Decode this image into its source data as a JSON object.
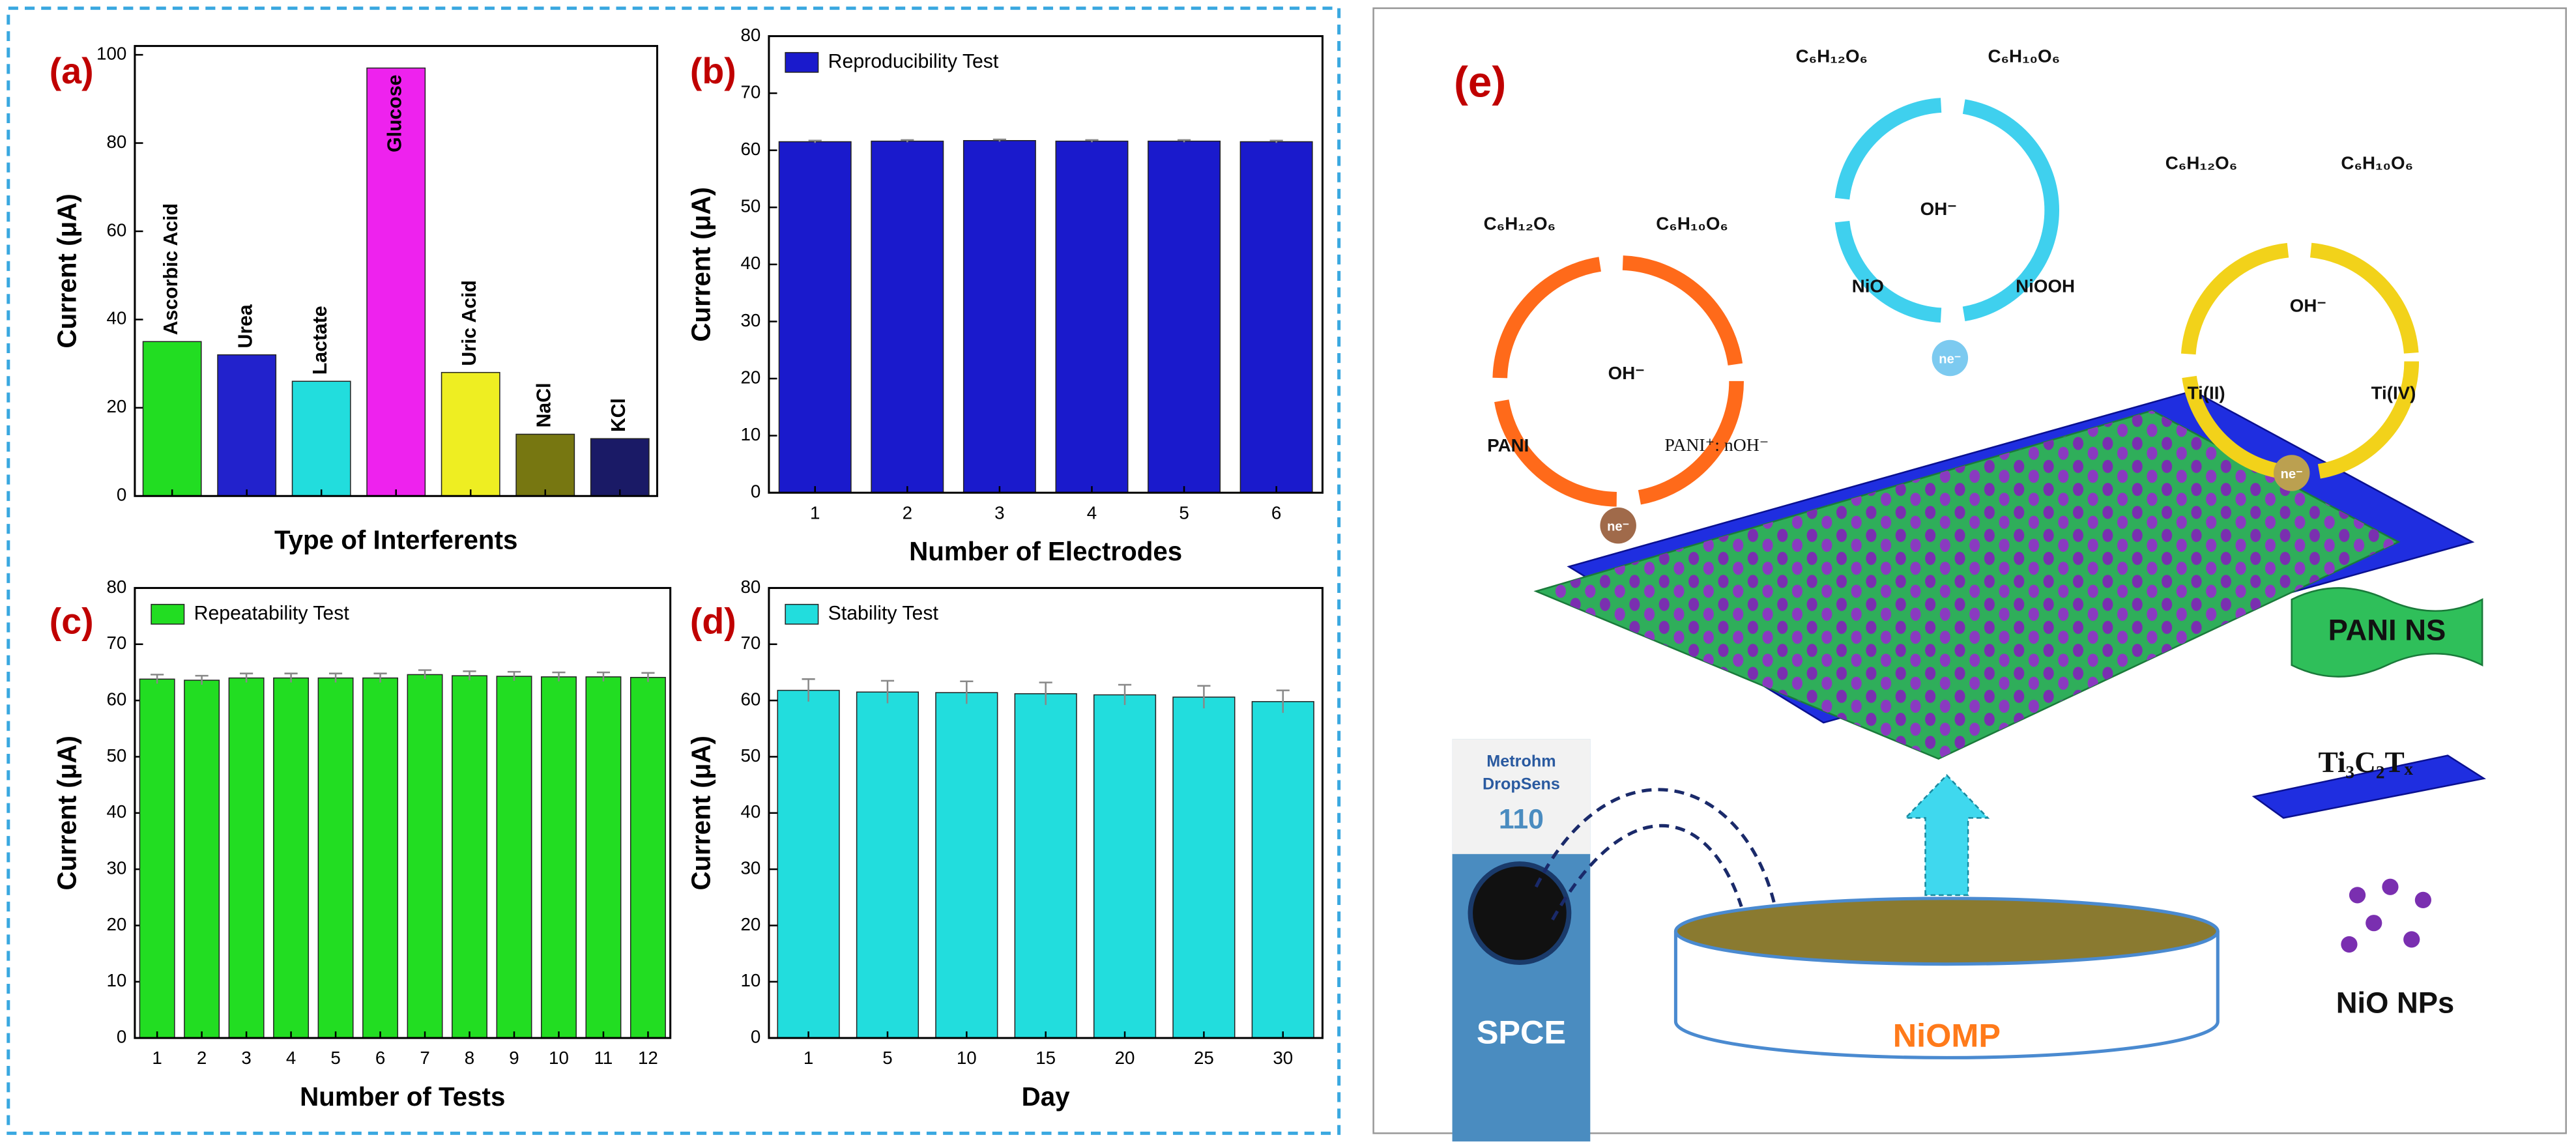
{
  "chart_data": [
    {
      "type": "bar",
      "panel": "(a)",
      "xlabel": "Type of Interferents",
      "ylabel": "Current (μA)",
      "categories": [
        "Ascorbic Acid",
        "Urea",
        "Lactate",
        "Glucose",
        "Uric Acid",
        "NaCl",
        "KCl"
      ],
      "values": [
        35,
        32,
        26,
        97,
        28,
        14,
        13
      ],
      "colors": [
        "#22dd22",
        "#2222cc",
        "#22dddd",
        "#ee22ee",
        "#eeee22",
        "#777711",
        "#1a1a66"
      ],
      "ylim": [
        0,
        102
      ],
      "yticks": [
        0,
        20,
        40,
        60,
        80,
        100
      ]
    },
    {
      "type": "bar",
      "panel": "(b)",
      "xlabel": "Number of Electrodes",
      "ylabel": "Current (μA)",
      "categories": [
        "1",
        "2",
        "3",
        "4",
        "5",
        "6"
      ],
      "series": [
        {
          "name": "Reproducibility Test",
          "color": "#1a1acc",
          "values": [
            61.5,
            61.6,
            61.7,
            61.6,
            61.6,
            61.5
          ],
          "errors": [
            0.2,
            0.2,
            0.2,
            0.2,
            0.2,
            0.2
          ]
        }
      ],
      "ylim": [
        0,
        80
      ],
      "yticks": [
        0,
        10,
        20,
        30,
        40,
        50,
        60,
        70,
        80
      ]
    },
    {
      "type": "bar",
      "panel": "(c)",
      "xlabel": "Number of Tests",
      "ylabel": "Current (μA)",
      "categories": [
        "1",
        "2",
        "3",
        "4",
        "5",
        "6",
        "7",
        "8",
        "9",
        "10",
        "11",
        "12"
      ],
      "series": [
        {
          "name": "Repeatability Test",
          "color": "#22dd22",
          "values": [
            63.8,
            63.6,
            64,
            64,
            64,
            64,
            64.6,
            64.4,
            64.3,
            64.2,
            64.2,
            64.1
          ],
          "errors": [
            0.8,
            0.8,
            0.8,
            0.8,
            0.8,
            0.8,
            0.8,
            0.8,
            0.8,
            0.8,
            0.8,
            0.8
          ]
        }
      ],
      "ylim": [
        0,
        80
      ],
      "yticks": [
        0,
        10,
        20,
        30,
        40,
        50,
        60,
        70,
        80
      ]
    },
    {
      "type": "bar",
      "panel": "(d)",
      "xlabel": "Day",
      "ylabel": "Current (μA)",
      "categories": [
        "1",
        "5",
        "10",
        "15",
        "20",
        "25",
        "30"
      ],
      "series": [
        {
          "name": "Stability Test",
          "color": "#22dddd",
          "values": [
            61.8,
            61.5,
            61.4,
            61.2,
            61,
            60.6,
            59.8
          ],
          "errors": [
            2,
            2,
            2,
            2,
            1.8,
            2,
            2
          ]
        }
      ],
      "ylim": [
        0,
        80
      ],
      "yticks": [
        0,
        10,
        20,
        30,
        40,
        50,
        60,
        70,
        80
      ]
    }
  ],
  "diagram": {
    "label": "(e)",
    "left_cycle": {
      "reactant": "C₆H₁₂O₆",
      "product": "C₆H₁₀O₆",
      "center": "OH⁻",
      "start": "PANI",
      "end": "PANI⁺: nOH⁻",
      "electron": "ne⁻"
    },
    "middle_cycle": {
      "reactant": "C₆H₁₂O₆",
      "product": "C₆H₁₀O₆",
      "center": "OH⁻",
      "start": "NiO",
      "end": "NiOOH",
      "electron": "ne⁻"
    },
    "right_cycle": {
      "reactant": "C₆H₁₂O₆",
      "product": "C₆H₁₀O₆",
      "center": "OH⁻",
      "start": "Ti(II)",
      "end": "Ti(IV)",
      "electron": "ne⁻"
    },
    "legend": [
      "PANI NS",
      "Ti₃C₂Tₓ",
      "NiO NPs"
    ],
    "dish": "NiOMP",
    "electrode": {
      "brand": "Metrohm",
      "maker": "DropSens",
      "model": "110",
      "name": "SPCE"
    }
  }
}
